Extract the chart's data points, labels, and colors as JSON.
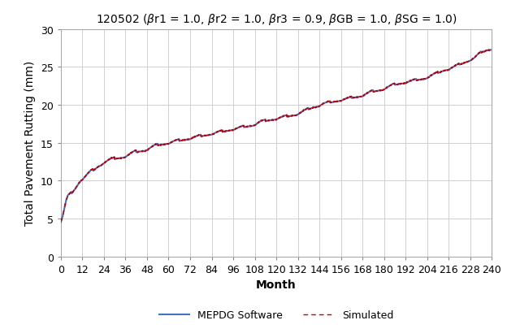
{
  "title": "120502 (βr1 = 1.0, βr2 = 1.0, βr3 = 0.9, βGB = 1.0, βSG = 1.0)",
  "xlabel": "Month",
  "ylabel": "Total Pavement Rutting (mm)",
  "xlim": [
    0,
    240
  ],
  "ylim": [
    0,
    30
  ],
  "xticks": [
    0,
    12,
    24,
    36,
    48,
    60,
    72,
    84,
    96,
    108,
    120,
    132,
    144,
    156,
    168,
    180,
    192,
    204,
    216,
    228,
    240
  ],
  "yticks": [
    0,
    5,
    10,
    15,
    20,
    25,
    30
  ],
  "mepdg_color": "#4472c4",
  "sim_color": "#c00000",
  "background_color": "#ffffff",
  "grid_color": "#d0d0d0",
  "title_fontsize": 10,
  "label_fontsize": 10,
  "tick_fontsize": 9,
  "legend_fontsize": 9,
  "key_points": [
    [
      0,
      4.5
    ],
    [
      1,
      5.2
    ],
    [
      2,
      6.2
    ],
    [
      3,
      7.2
    ],
    [
      4,
      7.8
    ],
    [
      5,
      8.0
    ],
    [
      6,
      8.2
    ],
    [
      7,
      8.5
    ],
    [
      8,
      8.8
    ],
    [
      9,
      9.2
    ],
    [
      10,
      9.6
    ],
    [
      11,
      9.9
    ],
    [
      12,
      10.1
    ],
    [
      13,
      10.3
    ],
    [
      14,
      10.5
    ],
    [
      15,
      10.7
    ],
    [
      16,
      10.9
    ],
    [
      17,
      11.1
    ],
    [
      18,
      11.2
    ],
    [
      19,
      11.4
    ],
    [
      20,
      11.6
    ],
    [
      21,
      11.8
    ],
    [
      22,
      11.9
    ],
    [
      23,
      12.1
    ],
    [
      24,
      12.3
    ],
    [
      25,
      12.4
    ],
    [
      26,
      12.5
    ],
    [
      27,
      12.6
    ],
    [
      28,
      12.65
    ],
    [
      29,
      12.7
    ],
    [
      30,
      12.75
    ],
    [
      31,
      12.8
    ],
    [
      32,
      12.85
    ],
    [
      33,
      12.9
    ],
    [
      34,
      12.95
    ],
    [
      35,
      13.0
    ],
    [
      36,
      13.1
    ],
    [
      37,
      13.2
    ],
    [
      38,
      13.3
    ],
    [
      39,
      13.4
    ],
    [
      40,
      13.5
    ],
    [
      41,
      13.6
    ],
    [
      42,
      13.65
    ],
    [
      43,
      13.7
    ],
    [
      44,
      13.75
    ],
    [
      45,
      13.8
    ],
    [
      46,
      13.85
    ],
    [
      47,
      13.9
    ],
    [
      48,
      14.0
    ],
    [
      49,
      14.1
    ],
    [
      50,
      14.2
    ],
    [
      51,
      14.3
    ],
    [
      52,
      14.4
    ],
    [
      53,
      14.5
    ],
    [
      54,
      14.55
    ],
    [
      55,
      14.6
    ],
    [
      56,
      14.65
    ],
    [
      57,
      14.7
    ],
    [
      58,
      14.75
    ],
    [
      59,
      14.8
    ],
    [
      60,
      14.85
    ],
    [
      61,
      14.9
    ],
    [
      62,
      14.95
    ],
    [
      63,
      15.0
    ],
    [
      64,
      15.05
    ],
    [
      65,
      15.1
    ],
    [
      66,
      15.15
    ],
    [
      67,
      15.2
    ],
    [
      68,
      15.25
    ],
    [
      69,
      15.3
    ],
    [
      70,
      15.35
    ],
    [
      71,
      15.4
    ],
    [
      72,
      15.45
    ],
    [
      73,
      15.5
    ],
    [
      74,
      15.55
    ],
    [
      75,
      15.6
    ],
    [
      76,
      15.65
    ],
    [
      77,
      15.7
    ],
    [
      78,
      15.75
    ],
    [
      79,
      15.8
    ],
    [
      80,
      15.85
    ],
    [
      81,
      15.9
    ],
    [
      82,
      15.95
    ],
    [
      83,
      16.0
    ],
    [
      84,
      16.05
    ],
    [
      85,
      16.1
    ],
    [
      86,
      16.15
    ],
    [
      87,
      16.2
    ],
    [
      88,
      16.25
    ],
    [
      89,
      16.3
    ],
    [
      90,
      16.35
    ],
    [
      91,
      16.4
    ],
    [
      92,
      16.45
    ],
    [
      93,
      16.5
    ],
    [
      94,
      16.55
    ],
    [
      95,
      16.6
    ],
    [
      96,
      16.65
    ],
    [
      97,
      16.7
    ],
    [
      98,
      16.75
    ],
    [
      99,
      16.8
    ],
    [
      100,
      16.85
    ],
    [
      101,
      16.9
    ],
    [
      102,
      16.95
    ],
    [
      103,
      17.0
    ],
    [
      104,
      17.05
    ],
    [
      105,
      17.1
    ],
    [
      106,
      17.15
    ],
    [
      107,
      17.2
    ],
    [
      108,
      17.3
    ],
    [
      109,
      17.4
    ],
    [
      110,
      17.5
    ],
    [
      111,
      17.6
    ],
    [
      112,
      17.65
    ],
    [
      113,
      17.7
    ],
    [
      114,
      17.75
    ],
    [
      115,
      17.8
    ],
    [
      116,
      17.85
    ],
    [
      117,
      17.9
    ],
    [
      118,
      17.95
    ],
    [
      119,
      18.0
    ],
    [
      120,
      18.05
    ],
    [
      121,
      18.1
    ],
    [
      122,
      18.15
    ],
    [
      123,
      18.2
    ],
    [
      124,
      18.25
    ],
    [
      125,
      18.3
    ],
    [
      126,
      18.35
    ],
    [
      127,
      18.4
    ],
    [
      128,
      18.45
    ],
    [
      129,
      18.5
    ],
    [
      130,
      18.55
    ],
    [
      131,
      18.6
    ],
    [
      132,
      18.7
    ],
    [
      133,
      18.8
    ],
    [
      134,
      18.9
    ],
    [
      135,
      19.0
    ],
    [
      136,
      19.1
    ],
    [
      137,
      19.2
    ],
    [
      138,
      19.3
    ],
    [
      139,
      19.4
    ],
    [
      140,
      19.5
    ],
    [
      141,
      19.6
    ],
    [
      142,
      19.65
    ],
    [
      143,
      19.7
    ],
    [
      144,
      19.8
    ],
    [
      145,
      19.9
    ],
    [
      146,
      20.0
    ],
    [
      147,
      20.05
    ],
    [
      148,
      20.1
    ],
    [
      149,
      20.15
    ],
    [
      150,
      20.2
    ],
    [
      151,
      20.25
    ],
    [
      152,
      20.3
    ],
    [
      153,
      20.35
    ],
    [
      154,
      20.4
    ],
    [
      155,
      20.45
    ],
    [
      156,
      20.5
    ],
    [
      157,
      20.55
    ],
    [
      158,
      20.6
    ],
    [
      159,
      20.65
    ],
    [
      160,
      20.7
    ],
    [
      161,
      20.75
    ],
    [
      162,
      20.8
    ],
    [
      163,
      20.85
    ],
    [
      164,
      20.9
    ],
    [
      165,
      20.95
    ],
    [
      166,
      21.0
    ],
    [
      167,
      21.05
    ],
    [
      168,
      21.1
    ],
    [
      169,
      21.2
    ],
    [
      170,
      21.3
    ],
    [
      171,
      21.4
    ],
    [
      172,
      21.5
    ],
    [
      173,
      21.6
    ],
    [
      174,
      21.65
    ],
    [
      175,
      21.7
    ],
    [
      176,
      21.75
    ],
    [
      177,
      21.8
    ],
    [
      178,
      21.85
    ],
    [
      179,
      21.9
    ],
    [
      180,
      22.0
    ],
    [
      181,
      22.1
    ],
    [
      182,
      22.2
    ],
    [
      183,
      22.3
    ],
    [
      184,
      22.4
    ],
    [
      185,
      22.5
    ],
    [
      186,
      22.55
    ],
    [
      187,
      22.6
    ],
    [
      188,
      22.65
    ],
    [
      189,
      22.7
    ],
    [
      190,
      22.75
    ],
    [
      191,
      22.8
    ],
    [
      192,
      22.85
    ],
    [
      193,
      22.9
    ],
    [
      194,
      22.95
    ],
    [
      195,
      23.0
    ],
    [
      196,
      23.05
    ],
    [
      197,
      23.1
    ],
    [
      198,
      23.15
    ],
    [
      199,
      23.2
    ],
    [
      200,
      23.25
    ],
    [
      201,
      23.3
    ],
    [
      202,
      23.35
    ],
    [
      203,
      23.4
    ],
    [
      204,
      23.5
    ],
    [
      205,
      23.6
    ],
    [
      206,
      23.7
    ],
    [
      207,
      23.8
    ],
    [
      208,
      23.9
    ],
    [
      209,
      24.0
    ],
    [
      210,
      24.1
    ],
    [
      211,
      24.2
    ],
    [
      212,
      24.3
    ],
    [
      213,
      24.4
    ],
    [
      214,
      24.5
    ],
    [
      215,
      24.55
    ],
    [
      216,
      24.6
    ],
    [
      217,
      24.7
    ],
    [
      218,
      24.8
    ],
    [
      219,
      24.9
    ],
    [
      220,
      25.0
    ],
    [
      221,
      25.1
    ],
    [
      222,
      25.2
    ],
    [
      223,
      25.3
    ],
    [
      224,
      25.4
    ],
    [
      225,
      25.5
    ],
    [
      226,
      25.6
    ],
    [
      227,
      25.7
    ],
    [
      228,
      25.8
    ],
    [
      229,
      25.9
    ],
    [
      230,
      26.0
    ],
    [
      231,
      26.2
    ],
    [
      232,
      26.4
    ],
    [
      233,
      26.6
    ],
    [
      234,
      26.8
    ],
    [
      235,
      26.9
    ],
    [
      236,
      27.0
    ],
    [
      237,
      27.1
    ],
    [
      238,
      27.15
    ],
    [
      239,
      27.2
    ],
    [
      240,
      27.25
    ]
  ]
}
